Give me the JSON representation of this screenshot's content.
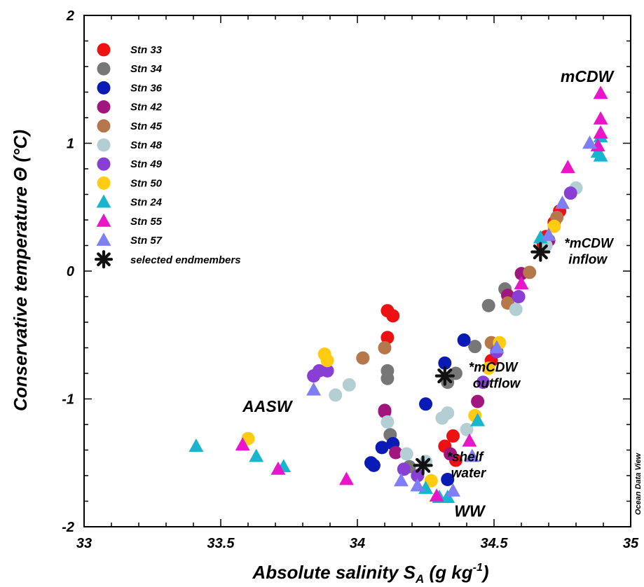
{
  "chart_data": {
    "type": "scatter",
    "xlabel": "Absolute salinity S",
    "xlabel_sub": "A",
    "xlabel_unit": " (g kg",
    "xlabel_exp": "-1",
    "xlabel_close": ")",
    "ylabel": "Conservative temperature Θ (°C)",
    "xlim": [
      33,
      35
    ],
    "ylim": [
      -2,
      2
    ],
    "x_ticks": [
      33,
      33.5,
      34,
      34.5,
      35
    ],
    "x_tick_labels": [
      "33",
      "33.5",
      "34",
      "34.5",
      "35"
    ],
    "y_ticks": [
      -2,
      -1,
      0,
      1,
      2
    ],
    "y_tick_labels": [
      "-2",
      "-1",
      "0",
      "1",
      "2"
    ],
    "grid": false,
    "legend_position": "top-left",
    "credit": "Ocean Data View",
    "series": [
      {
        "name": "Stn 33",
        "marker": "circle",
        "color": "#ee1111",
        "points": [
          [
            34.11,
            -0.31
          ],
          [
            34.13,
            -0.35
          ],
          [
            34.11,
            -0.52
          ],
          [
            34.32,
            -1.37
          ],
          [
            34.35,
            -1.29
          ],
          [
            34.36,
            -1.48
          ],
          [
            34.49,
            -0.7
          ],
          [
            34.72,
            0.38
          ],
          [
            34.74,
            0.47
          ],
          [
            34.69,
            0.27
          ],
          [
            34.68,
            0.21
          ]
        ]
      },
      {
        "name": "Stn 34",
        "marker": "circle",
        "color": "#777777",
        "points": [
          [
            34.12,
            -1.28
          ],
          [
            34.11,
            -0.78
          ],
          [
            34.11,
            -0.84
          ],
          [
            34.19,
            -1.53
          ],
          [
            34.33,
            -0.87
          ],
          [
            34.36,
            -0.8
          ],
          [
            34.43,
            -0.59
          ],
          [
            34.48,
            -0.27
          ],
          [
            34.54,
            -0.14
          ]
        ]
      },
      {
        "name": "Stn 36",
        "marker": "circle",
        "color": "#0a1bb5",
        "points": [
          [
            34.09,
            -1.38
          ],
          [
            34.13,
            -1.35
          ],
          [
            34.05,
            -1.5
          ],
          [
            34.06,
            -1.52
          ],
          [
            34.25,
            -1.04
          ],
          [
            34.32,
            -0.72
          ],
          [
            34.39,
            -0.54
          ],
          [
            34.33,
            -1.63
          ]
        ]
      },
      {
        "name": "Stn 42",
        "marker": "circle",
        "color": "#a0167e",
        "points": [
          [
            34.1,
            -1.09
          ],
          [
            34.1,
            -1.1
          ],
          [
            34.14,
            -1.42
          ],
          [
            34.34,
            -1.43
          ],
          [
            34.44,
            -1.02
          ],
          [
            34.6,
            -0.02
          ],
          [
            34.7,
            0.24
          ],
          [
            34.55,
            -0.19
          ]
        ]
      },
      {
        "name": "Stn 45",
        "marker": "circle",
        "color": "#b5784a",
        "points": [
          [
            34.02,
            -0.68
          ],
          [
            34.1,
            -0.6
          ],
          [
            34.49,
            -0.56
          ],
          [
            34.55,
            -0.25
          ],
          [
            34.63,
            -0.01
          ],
          [
            34.73,
            0.42
          ]
        ]
      },
      {
        "name": "Stn 48",
        "marker": "circle",
        "color": "#b3cfd3",
        "points": [
          [
            33.92,
            -0.97
          ],
          [
            33.97,
            -0.89
          ],
          [
            34.11,
            -1.18
          ],
          [
            34.18,
            -1.43
          ],
          [
            34.25,
            -1.49
          ],
          [
            34.31,
            -1.15
          ],
          [
            34.33,
            -1.11
          ],
          [
            34.4,
            -1.24
          ],
          [
            34.58,
            -0.3
          ],
          [
            34.8,
            0.65
          ],
          [
            34.69,
            0.2
          ]
        ]
      },
      {
        "name": "Stn 49",
        "marker": "circle",
        "color": "#8a3fd4",
        "points": [
          [
            33.84,
            -0.82
          ],
          [
            33.86,
            -0.78
          ],
          [
            33.89,
            -0.78
          ],
          [
            34.17,
            -1.55
          ],
          [
            34.22,
            -1.6
          ],
          [
            34.46,
            -0.87
          ],
          [
            34.59,
            -0.2
          ],
          [
            34.78,
            0.61
          ],
          [
            34.51,
            -0.63
          ]
        ]
      },
      {
        "name": "Stn 50",
        "marker": "circle",
        "color": "#ffcc11",
        "points": [
          [
            33.6,
            -1.31
          ],
          [
            33.88,
            -0.65
          ],
          [
            33.89,
            -0.7
          ],
          [
            34.27,
            -1.64
          ],
          [
            34.43,
            -1.13
          ],
          [
            34.48,
            -0.76
          ],
          [
            34.52,
            -0.56
          ],
          [
            34.72,
            0.35
          ]
        ]
      },
      {
        "name": "Stn 24",
        "marker": "triangle",
        "color": "#19b5cf",
        "points": [
          [
            33.41,
            -1.37
          ],
          [
            33.63,
            -1.45
          ],
          [
            33.73,
            -1.53
          ],
          [
            34.25,
            -1.7
          ],
          [
            34.3,
            -1.77
          ],
          [
            34.33,
            -1.77
          ],
          [
            34.44,
            -1.17
          ],
          [
            34.67,
            0.26
          ],
          [
            34.89,
            1.05
          ],
          [
            34.88,
            0.93
          ],
          [
            34.89,
            0.9
          ]
        ]
      },
      {
        "name": "Stn 55",
        "marker": "triangle",
        "color": "#e816c8",
        "points": [
          [
            33.58,
            -1.36
          ],
          [
            33.71,
            -1.55
          ],
          [
            33.96,
            -1.63
          ],
          [
            34.41,
            -1.33
          ],
          [
            34.29,
            -1.76
          ],
          [
            34.77,
            0.81
          ],
          [
            34.89,
            1.39
          ],
          [
            34.89,
            1.19
          ],
          [
            34.89,
            1.08
          ],
          [
            34.88,
            0.98
          ],
          [
            34.6,
            -0.1
          ]
        ]
      },
      {
        "name": "Stn 57",
        "marker": "triangle",
        "color": "#7f7ff5",
        "points": [
          [
            33.84,
            -0.93
          ],
          [
            34.16,
            -1.64
          ],
          [
            34.22,
            -1.68
          ],
          [
            34.35,
            -1.72
          ],
          [
            34.42,
            -1.45
          ],
          [
            34.51,
            -0.6
          ],
          [
            34.75,
            0.53
          ],
          [
            34.85,
            1.0
          ],
          [
            34.7,
            0.28
          ]
        ]
      }
    ],
    "endmember_label": "selected endmembers",
    "endmembers": [
      {
        "x": 34.67,
        "y": 0.15,
        "label_line1": "*mCDW",
        "label_line2": "inflow"
      },
      {
        "x": 34.32,
        "y": -0.82,
        "label_line1": "*mCDW",
        "label_line2": "outflow"
      },
      {
        "x": 34.24,
        "y": -1.52,
        "label_line1": "*shelf",
        "label_line2": "water"
      }
    ],
    "water_masses": [
      {
        "label": "mCDW",
        "x": 34.84,
        "y": 1.48
      },
      {
        "label": "AASW",
        "x": 33.67,
        "y": -1.1
      },
      {
        "label": "WW",
        "x": 34.41,
        "y": -1.92
      }
    ]
  }
}
